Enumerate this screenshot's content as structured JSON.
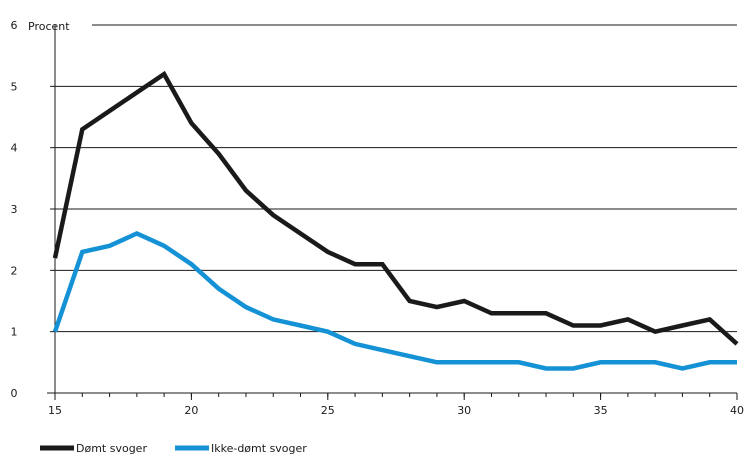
{
  "chart_data": {
    "type": "line",
    "ylabel": "Procent",
    "xlim": [
      15,
      40
    ],
    "ylim": [
      0,
      6
    ],
    "x_ticks": [
      15,
      20,
      25,
      30,
      35,
      40
    ],
    "y_ticks": [
      0,
      1,
      2,
      3,
      4,
      5,
      6
    ],
    "grid": "horizontal",
    "legend_position": "bottom-left",
    "x": [
      15,
      16,
      17,
      18,
      19,
      20,
      21,
      22,
      23,
      24,
      25,
      26,
      27,
      28,
      29,
      30,
      31,
      32,
      33,
      34,
      35,
      36,
      37,
      38,
      39,
      40
    ],
    "series": [
      {
        "name": "Dømt svoger",
        "color": "#1a1a1a",
        "values": [
          2.2,
          4.3,
          4.6,
          4.9,
          5.2,
          4.4,
          3.9,
          3.3,
          2.9,
          2.6,
          2.3,
          2.1,
          2.1,
          1.5,
          1.4,
          1.5,
          1.3,
          1.3,
          1.3,
          1.1,
          1.1,
          1.2,
          1.0,
          1.1,
          1.2,
          0.8
        ]
      },
      {
        "name": "Ikke-dømt svoger",
        "color": "#1592d6",
        "values": [
          1.0,
          2.3,
          2.4,
          2.6,
          2.4,
          2.1,
          1.7,
          1.4,
          1.2,
          1.1,
          1.0,
          0.8,
          0.7,
          0.6,
          0.5,
          0.5,
          0.5,
          0.5,
          0.4,
          0.4,
          0.5,
          0.5,
          0.5,
          0.4,
          0.5,
          0.5
        ]
      }
    ]
  }
}
